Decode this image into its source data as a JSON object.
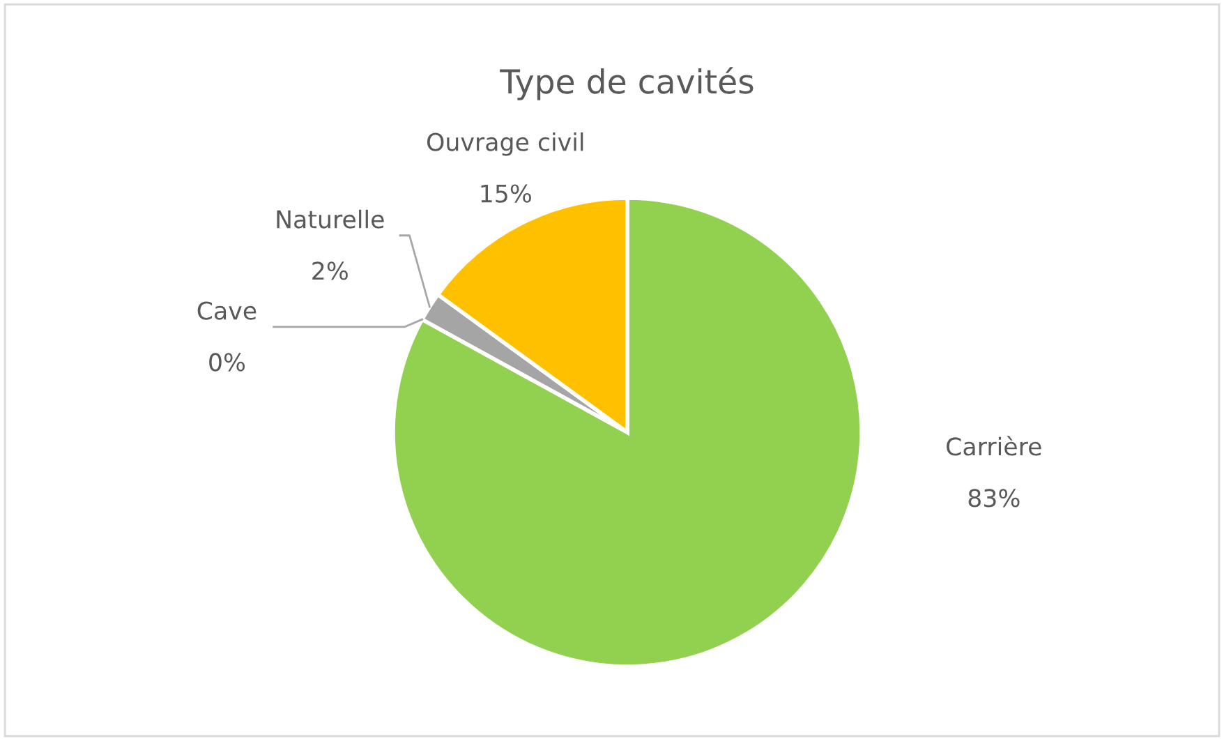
{
  "chart_data": {
    "type": "pie",
    "title": "Type de cavités",
    "categories": [
      "Carrière",
      "Cave",
      "Naturelle",
      "Ouvrage civil"
    ],
    "values": [
      83,
      0,
      2,
      15
    ],
    "colors": [
      "#92d050",
      "#5b9bd5",
      "#a5a5a5",
      "#ffc000"
    ],
    "value_labels": [
      "83%",
      "0%",
      "2%",
      "15%"
    ],
    "legend": false
  }
}
